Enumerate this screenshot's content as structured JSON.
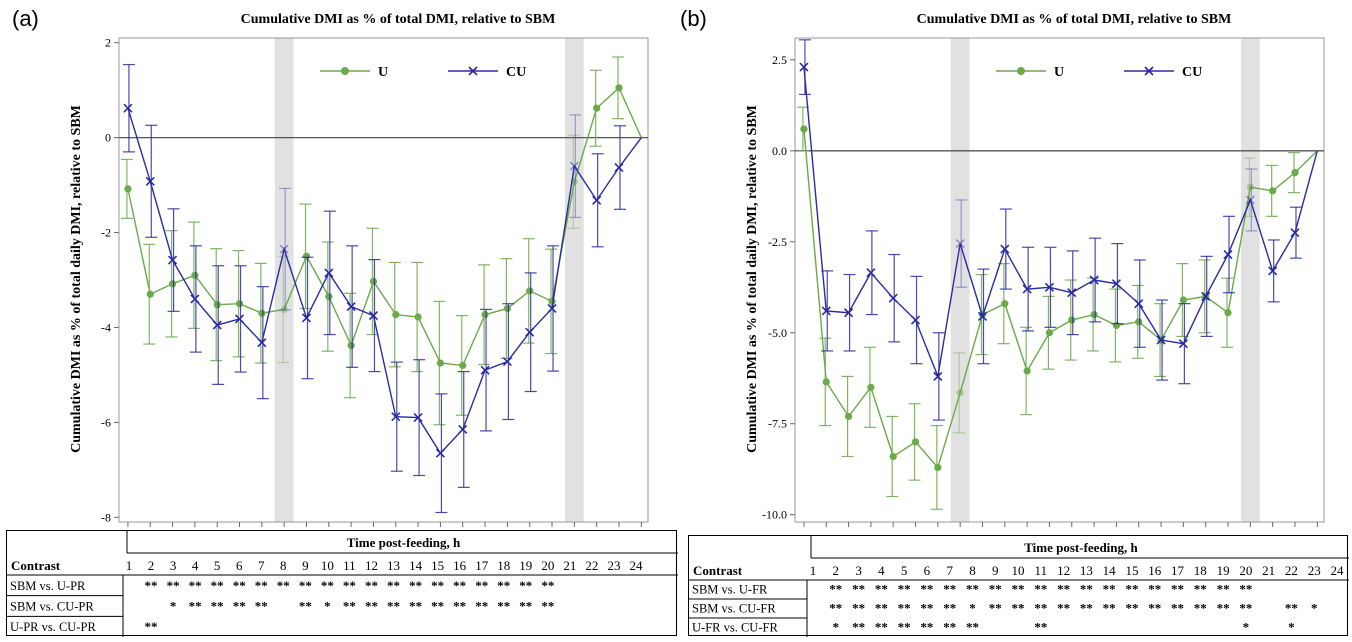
{
  "panels": [
    {
      "letter": "(a)",
      "table_header": "Time post-feeding, h",
      "contrast_header": "Contrast",
      "hours": [
        "1",
        "2",
        "3",
        "4",
        "5",
        "6",
        "7",
        "8",
        "9",
        "10",
        "11",
        "12",
        "13",
        "14",
        "15",
        "16",
        "17",
        "18",
        "19",
        "20",
        "21",
        "22",
        "23",
        "24"
      ],
      "contrasts": [
        {
          "label": "SBM vs. U-PR",
          "stars": [
            "",
            "**",
            "**",
            "**",
            "**",
            "**",
            "**",
            "**",
            "**",
            "**",
            "**",
            "**",
            "**",
            "**",
            "**",
            "**",
            "**",
            "**",
            "**",
            "**",
            "",
            "",
            "",
            ""
          ]
        },
        {
          "label": "SBM vs. CU-PR",
          "stars": [
            "",
            "",
            "*",
            "**",
            "**",
            "**",
            "**",
            "",
            "**",
            "*",
            "**",
            "**",
            "**",
            "**",
            "**",
            "**",
            "**",
            "**",
            "**",
            "**",
            "",
            "",
            "",
            ""
          ]
        },
        {
          "label": "U-PR vs. CU-PR",
          "stars": [
            "",
            "**",
            "",
            "",
            "",
            "",
            "",
            "",
            "",
            "",
            "",
            "",
            "",
            "",
            "",
            "",
            "",
            "",
            "",
            "",
            "",
            "",
            "",
            ""
          ]
        }
      ]
    },
    {
      "letter": "(b)",
      "table_header": "Time post-feeding, h",
      "contrast_header": "Contrast",
      "hours": [
        "1",
        "2",
        "3",
        "4",
        "5",
        "6",
        "7",
        "8",
        "9",
        "10",
        "11",
        "12",
        "13",
        "14",
        "15",
        "16",
        "17",
        "18",
        "19",
        "20",
        "21",
        "22",
        "23",
        "24"
      ],
      "contrasts": [
        {
          "label": "SBM vs. U-FR",
          "stars": [
            "",
            "**",
            "**",
            "**",
            "**",
            "**",
            "**",
            "**",
            "**",
            "**",
            "**",
            "**",
            "**",
            "**",
            "**",
            "**",
            "**",
            "**",
            "**",
            "**",
            "",
            "",
            "",
            ""
          ]
        },
        {
          "label": "SBM vs. CU-FR",
          "stars": [
            "",
            "**",
            "**",
            "**",
            "**",
            "**",
            "**",
            "*",
            "**",
            "**",
            "**",
            "**",
            "**",
            "**",
            "**",
            "**",
            "**",
            "**",
            "**",
            "**",
            "",
            "**",
            "*",
            ""
          ]
        },
        {
          "label": "U-FR vs. CU-FR",
          "stars": [
            "",
            "*",
            "**",
            "**",
            "**",
            "**",
            "**",
            "**",
            "",
            "",
            "**",
            "",
            "",
            "",
            "",
            "",
            "",
            "",
            "",
            "*",
            "",
            "*",
            "",
            ""
          ]
        }
      ]
    }
  ],
  "chart_data": [
    {
      "type": "line",
      "title": "Cumulative DMI as % of total DMI, relative to SBM",
      "xlabel": "",
      "ylabel": "Cumulative DMI as % of total daily DMI, relative to SBM",
      "x": [
        1,
        2,
        3,
        4,
        5,
        6,
        7,
        8,
        9,
        10,
        11,
        12,
        13,
        14,
        15,
        16,
        17,
        18,
        19,
        20,
        21,
        22,
        23,
        24
      ],
      "ylim": [
        -8.1,
        2.1
      ],
      "yticks": [
        "2",
        "0",
        "-2",
        "-4",
        "-6",
        "-8"
      ],
      "ytick_values": [
        2,
        0,
        -2,
        -4,
        -6,
        -8
      ],
      "shaded_hours": [
        8,
        21
      ],
      "reference_line": 0,
      "legend_position": "top-center",
      "series": [
        {
          "name": "U",
          "color": "#6aaa48",
          "marker": "circle",
          "values": [
            -1.08,
            -3.3,
            -3.08,
            -2.9,
            -3.52,
            -3.5,
            -3.7,
            -3.62,
            -2.5,
            -3.35,
            -4.38,
            -3.03,
            -3.73,
            -3.78,
            -4.75,
            -4.8,
            -3.73,
            -3.6,
            -3.23,
            -3.45,
            -0.93,
            0.62,
            1.05,
            0
          ],
          "err": [
            0.62,
            1.05,
            1.12,
            1.12,
            1.18,
            1.12,
            1.05,
            1.12,
            1.1,
            1.15,
            1.1,
            1.12,
            1.1,
            1.15,
            1.3,
            1.05,
            1.05,
            1.05,
            1.1,
            1.1,
            0.98,
            0.8,
            0.65,
            0
          ]
        },
        {
          "name": "CU",
          "color": "#2b2ba0",
          "marker": "x",
          "values": [
            0.62,
            -0.92,
            -2.58,
            -3.4,
            -3.95,
            -3.82,
            -4.32,
            -2.35,
            -3.8,
            -2.85,
            -3.56,
            -3.75,
            -5.88,
            -5.9,
            -6.65,
            -6.15,
            -4.9,
            -4.72,
            -4.1,
            -3.6,
            -0.6,
            -1.32,
            -0.63,
            0
          ],
          "err": [
            0.92,
            1.18,
            1.08,
            1.12,
            1.25,
            1.12,
            1.18,
            1.28,
            1.28,
            1.3,
            1.28,
            1.18,
            1.15,
            1.22,
            1.25,
            1.22,
            1.28,
            1.22,
            1.25,
            1.32,
            1.08,
            0.98,
            0.88,
            0
          ]
        }
      ]
    },
    {
      "type": "line",
      "title": "Cumulative DMI as % of total DMI, relative to SBM",
      "xlabel": "",
      "ylabel": "Cumulative DMI as % of total daily DMI, relative to SBM",
      "x": [
        1,
        2,
        3,
        4,
        5,
        6,
        7,
        8,
        9,
        10,
        11,
        12,
        13,
        14,
        15,
        16,
        17,
        18,
        19,
        20,
        21,
        22,
        23,
        24
      ],
      "ylim": [
        -10.2,
        3.1
      ],
      "yticks": [
        "2.5",
        "0.0",
        "-2.5",
        "-5.0",
        "-7.5",
        "-10.0"
      ],
      "ytick_values": [
        2.5,
        0,
        -2.5,
        -5,
        -7.5,
        -10
      ],
      "shaded_hours": [
        8,
        21
      ],
      "reference_line": 0,
      "legend_position": "top-center",
      "series": [
        {
          "name": "U",
          "color": "#6aaa48",
          "marker": "circle",
          "values": [
            0.6,
            -6.35,
            -7.3,
            -6.5,
            -8.4,
            -8.0,
            -8.7,
            -6.65,
            -4.5,
            -4.2,
            -6.05,
            -5.0,
            -4.65,
            -4.5,
            -4.8,
            -4.7,
            -5.2,
            -4.1,
            -4.0,
            -4.45,
            -1.0,
            -1.1,
            -0.6,
            0
          ],
          "err": [
            0.6,
            1.2,
            1.1,
            1.1,
            1.1,
            1.05,
            1.15,
            1.1,
            1.1,
            1.1,
            1.2,
            1.0,
            1.1,
            1.0,
            1.0,
            1.0,
            1.0,
            1.0,
            1.0,
            0.95,
            0.8,
            0.7,
            0.55,
            0
          ]
        },
        {
          "name": "CU",
          "color": "#2b2ba0",
          "marker": "x",
          "values": [
            2.3,
            -4.4,
            -4.45,
            -3.35,
            -4.05,
            -4.65,
            -6.2,
            -2.55,
            -4.55,
            -2.7,
            -3.8,
            -3.75,
            -3.9,
            -3.55,
            -3.65,
            -4.2,
            -5.2,
            -5.3,
            -4.0,
            -2.85,
            -1.35,
            -3.3,
            -2.25,
            0
          ],
          "err": [
            0.75,
            1.1,
            1.05,
            1.15,
            1.2,
            1.2,
            1.2,
            1.2,
            1.3,
            1.1,
            1.15,
            1.1,
            1.15,
            1.15,
            1.1,
            1.2,
            1.1,
            1.1,
            1.1,
            1.05,
            0.85,
            0.85,
            0.7,
            0
          ]
        }
      ]
    }
  ]
}
